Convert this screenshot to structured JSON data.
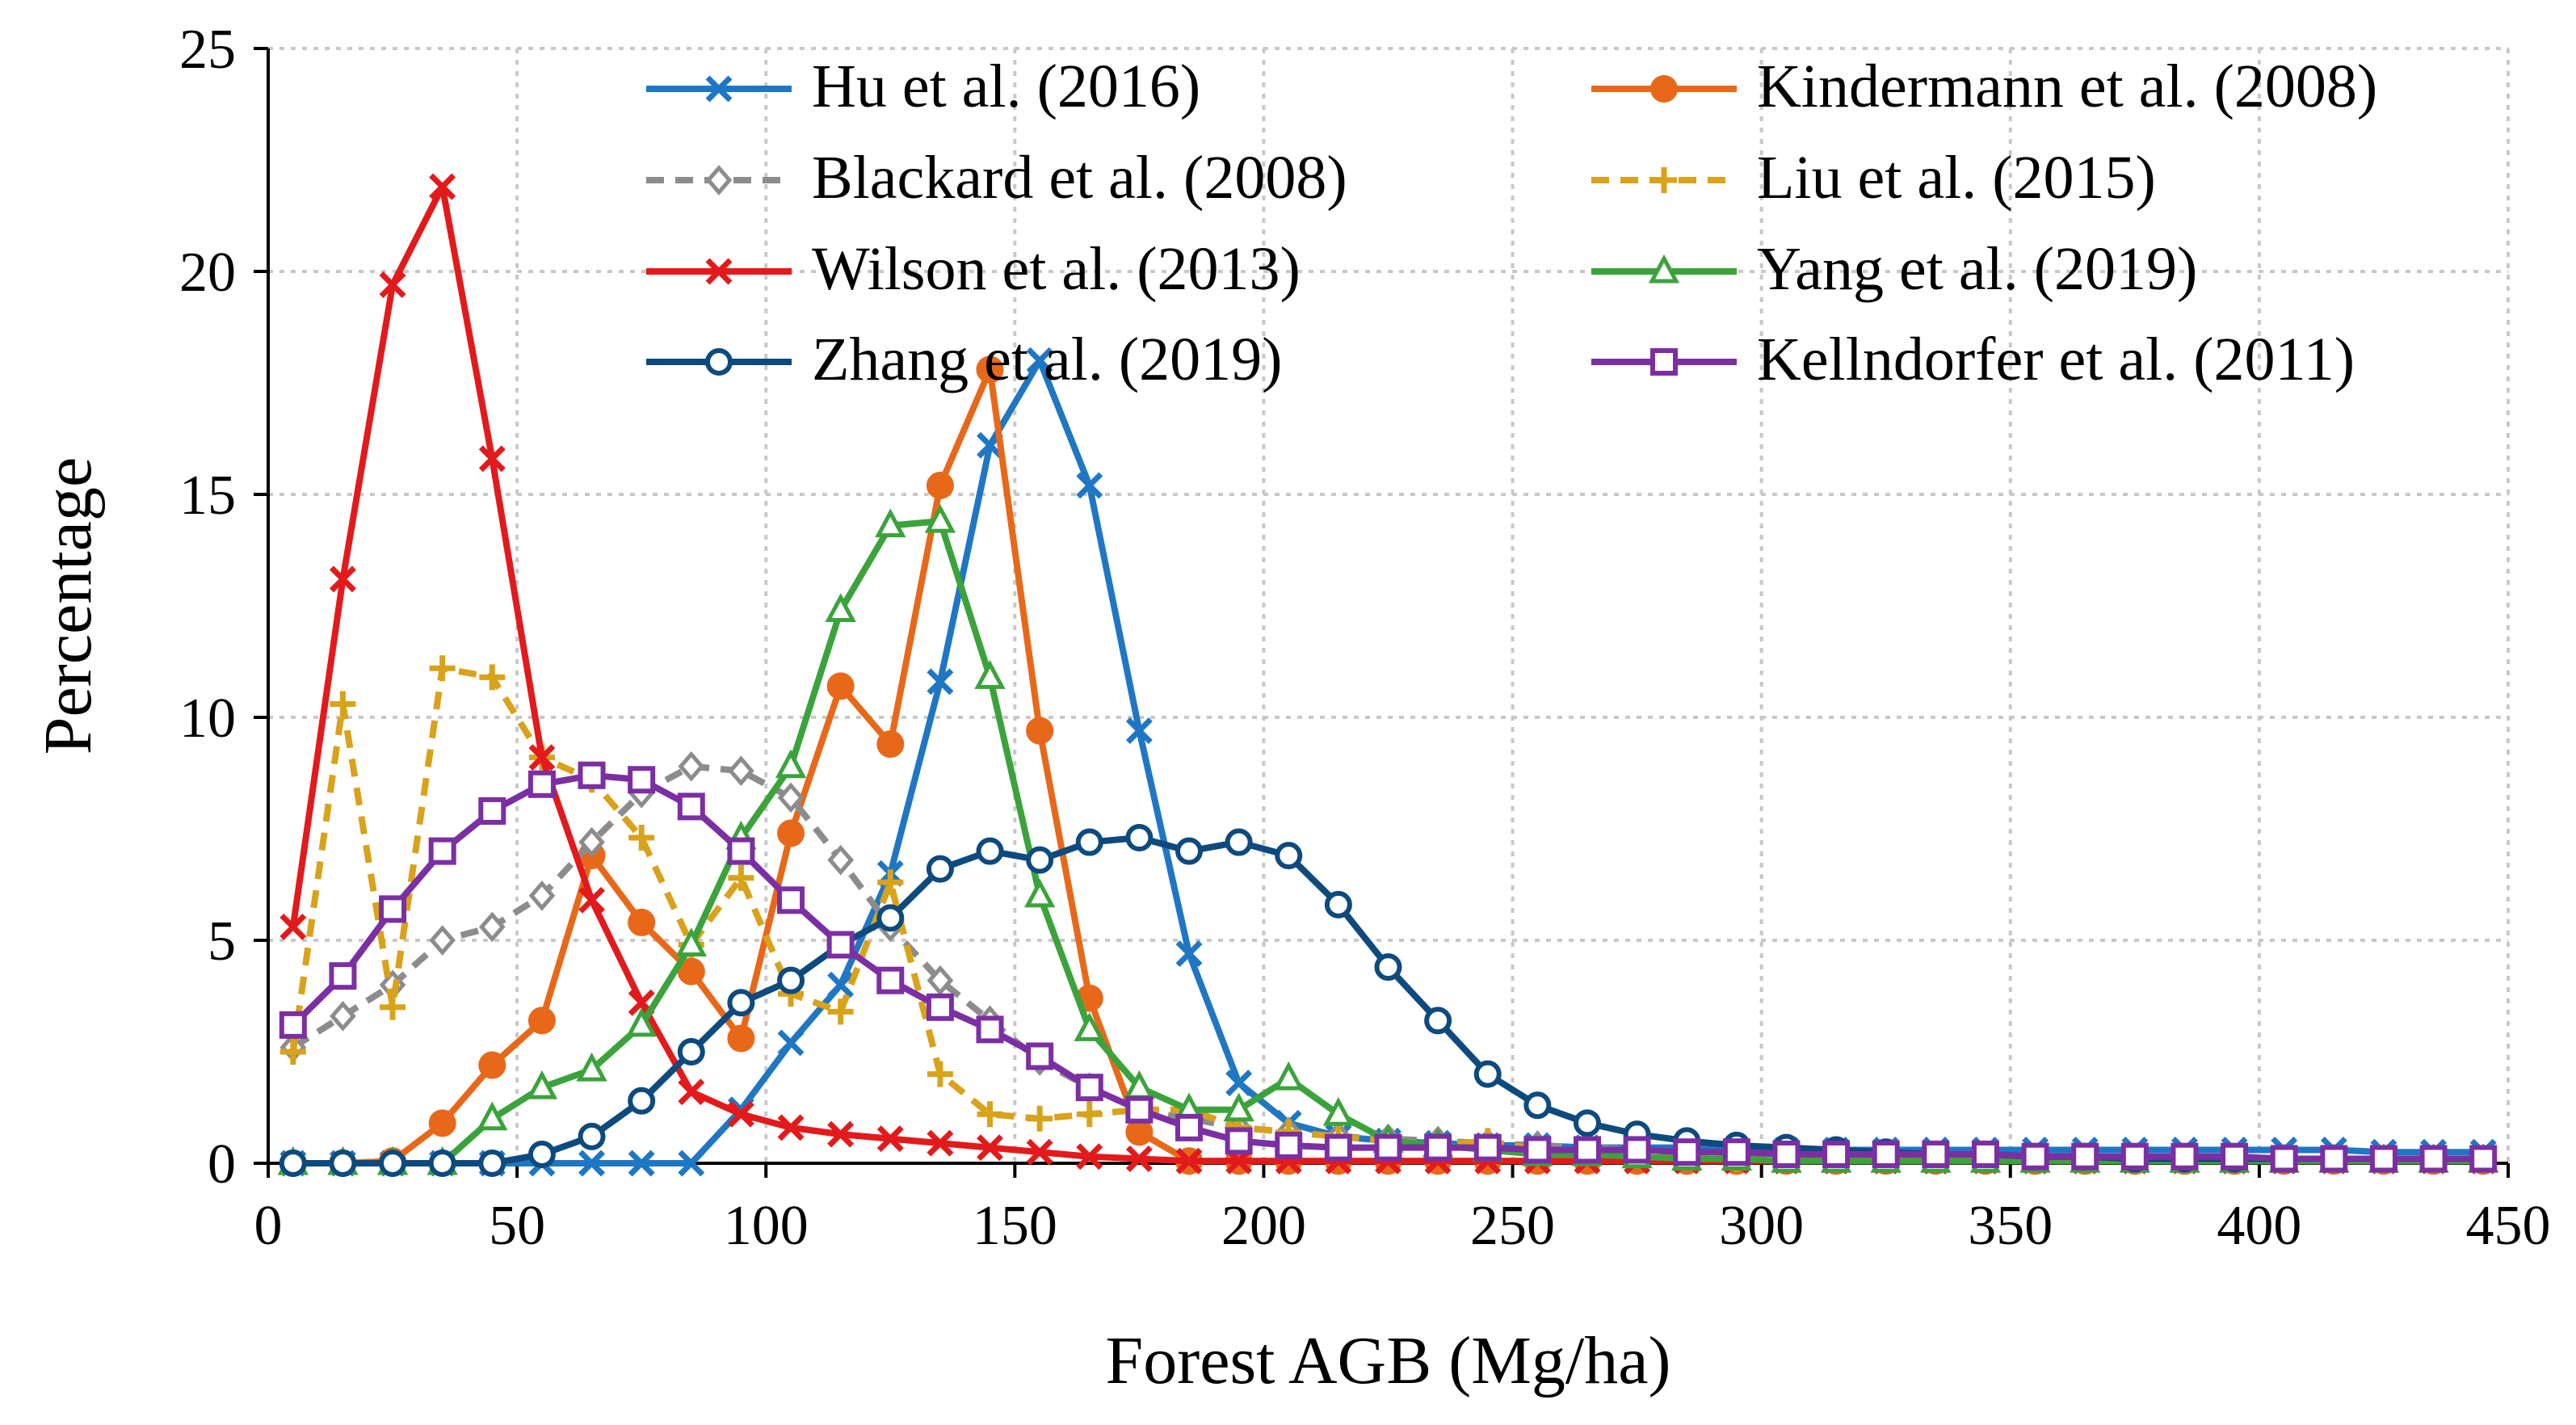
{
  "chart_data": {
    "type": "line",
    "title": "",
    "xlabel": "Forest AGB  (Mg/ha)",
    "ylabel": "Percentage",
    "xlim": [
      0,
      450
    ],
    "ylim": [
      0,
      25
    ],
    "xticks": [
      0,
      50,
      100,
      150,
      200,
      250,
      300,
      350,
      400,
      450
    ],
    "yticks": [
      0,
      5,
      10,
      15,
      20,
      25
    ],
    "grid": true,
    "legend_position": "top-right",
    "x": [
      5,
      15,
      25,
      35,
      45,
      55,
      65,
      75,
      85,
      95,
      105,
      115,
      125,
      135,
      145,
      155,
      165,
      175,
      185,
      195,
      205,
      215,
      225,
      235,
      245,
      255,
      265,
      275,
      285,
      295,
      305,
      315,
      325,
      335,
      345,
      355,
      365,
      375,
      385,
      395,
      405,
      415,
      425,
      435,
      445
    ],
    "series": [
      {
        "name": "Hu et al. (2016)",
        "color": "#1f77c4",
        "marker": "x",
        "dash": "solid",
        "values": [
          0,
          0,
          0,
          0,
          0,
          0,
          0,
          0,
          0,
          1.2,
          2.7,
          4.0,
          6.5,
          10.8,
          16.1,
          18.0,
          15.2,
          9.7,
          4.7,
          1.8,
          0.9,
          0.6,
          0.5,
          0.45,
          0.4,
          0.4,
          0.35,
          0.35,
          0.35,
          0.3,
          0.3,
          0.3,
          0.3,
          0.3,
          0.3,
          0.3,
          0.3,
          0.3,
          0.3,
          0.3,
          0.3,
          0.3,
          0.25,
          0.25,
          0.25
        ]
      },
      {
        "name": "Kindermann et al. (2008)",
        "color": "#e8681a",
        "marker": "circle",
        "dash": "solid",
        "values": [
          0,
          0,
          0.05,
          0.9,
          2.2,
          3.2,
          6.9,
          5.4,
          4.3,
          2.8,
          7.4,
          10.7,
          9.4,
          15.2,
          17.8,
          9.7,
          3.7,
          0.7,
          0.05,
          0.05,
          0.05,
          0.05,
          0.05,
          0.05,
          0.05,
          0.05,
          0.05,
          0.05,
          0.05,
          0.05,
          0.05,
          0.05,
          0.05,
          0.05,
          0.05,
          0.05,
          0.05,
          0.05,
          0.05,
          0.05,
          0.05,
          0.05,
          0.05,
          0.05,
          0.05
        ]
      },
      {
        "name": "Blackard et al. (2008)",
        "color": "#8c8c8c",
        "marker": "diamond",
        "dash": "dashed",
        "values": [
          2.6,
          3.3,
          4.0,
          5.0,
          5.3,
          6.0,
          7.2,
          8.3,
          8.9,
          8.8,
          8.2,
          6.8,
          5.3,
          4.1,
          3.2,
          2.3,
          1.7,
          1.2,
          1.0,
          0.8,
          0.7,
          0.6,
          0.55,
          0.5,
          0.45,
          0.4,
          0.35,
          0.3,
          0.25,
          0.2,
          0.15,
          0.1,
          0.1,
          0.1,
          0.1,
          0.1,
          0.1,
          0.1,
          0.1,
          0.1,
          0.1,
          0.1,
          0.1,
          0.1,
          0.1
        ]
      },
      {
        "name": "Liu et al. (2015)",
        "color": "#d9a21b",
        "marker": "plus",
        "dash": "dashed",
        "values": [
          2.5,
          10.3,
          3.5,
          11.1,
          10.9,
          9.1,
          8.6,
          7.3,
          4.9,
          6.4,
          3.8,
          3.4,
          6.3,
          2.0,
          1.1,
          1.0,
          1.1,
          1.2,
          1.2,
          0.8,
          0.7,
          0.6,
          0.5,
          0.4,
          0.5,
          0.3,
          0.3,
          0.2,
          0.2,
          0.1,
          0.1,
          0.1,
          0.1,
          0.1,
          0.1,
          0.1,
          0.1,
          0.1,
          0.1,
          0.1,
          0.1,
          0.1,
          0.1,
          0.1,
          0.1
        ]
      },
      {
        "name": "Wilson et al. (2013)",
        "color": "#e31a1c",
        "marker": "x",
        "dash": "solid",
        "values": [
          5.3,
          13.1,
          19.7,
          21.9,
          15.8,
          9.1,
          5.9,
          3.6,
          1.6,
          1.1,
          0.8,
          0.65,
          0.55,
          0.45,
          0.35,
          0.25,
          0.15,
          0.1,
          0.05,
          0.05,
          0.05,
          0.05,
          0.05,
          0.05,
          0.05,
          0.05,
          0.05,
          0.05,
          0.05,
          0.05,
          0.05,
          0.05,
          0.05,
          0.05,
          0.05,
          0.05,
          0.05,
          0.05,
          0.05,
          0.05,
          0.05,
          0.05,
          0.05,
          0.05,
          0.05
        ]
      },
      {
        "name": "Yang et al. (2019)",
        "color": "#3ba33b",
        "marker": "triangle",
        "dash": "solid",
        "values": [
          0,
          0,
          0,
          0,
          1.0,
          1.7,
          2.1,
          3.1,
          4.9,
          7.3,
          8.9,
          12.4,
          14.3,
          14.4,
          10.9,
          6.0,
          3.0,
          1.7,
          1.2,
          1.2,
          1.9,
          1.1,
          0.5,
          0.4,
          0.3,
          0.2,
          0.2,
          0.15,
          0.1,
          0.1,
          0.05,
          0.05,
          0.05,
          0.05,
          0.05,
          0.05,
          0.05,
          0.05,
          0.05,
          0.05,
          0.05,
          0.05,
          0.05,
          0.05,
          0.05
        ]
      },
      {
        "name": "Zhang et al. (2019)",
        "color": "#0d4a7e",
        "marker": "open-circle",
        "dash": "solid",
        "values": [
          0,
          0,
          0,
          0,
          0,
          0.2,
          0.6,
          1.4,
          2.5,
          3.6,
          4.1,
          4.9,
          5.5,
          6.6,
          7.0,
          6.8,
          7.2,
          7.3,
          7.0,
          7.2,
          6.9,
          5.8,
          4.4,
          3.2,
          2.0,
          1.3,
          0.9,
          0.65,
          0.5,
          0.4,
          0.35,
          0.3,
          0.25,
          0.2,
          0.2,
          0.15,
          0.15,
          0.1,
          0.1,
          0.1,
          0.1,
          0.1,
          0.1,
          0.1,
          0.1
        ]
      },
      {
        "name": "Kellndorfer et al. (2011)",
        "color": "#7b2fa2",
        "marker": "square",
        "dash": "solid",
        "values": [
          3.1,
          4.2,
          5.7,
          7.0,
          7.9,
          8.5,
          8.7,
          8.6,
          8.0,
          7.0,
          5.9,
          4.9,
          4.1,
          3.5,
          3.0,
          2.4,
          1.7,
          1.2,
          0.8,
          0.5,
          0.4,
          0.35,
          0.35,
          0.35,
          0.35,
          0.3,
          0.3,
          0.3,
          0.25,
          0.25,
          0.2,
          0.2,
          0.2,
          0.2,
          0.2,
          0.15,
          0.15,
          0.15,
          0.15,
          0.15,
          0.1,
          0.1,
          0.1,
          0.1,
          0.1
        ]
      }
    ]
  }
}
